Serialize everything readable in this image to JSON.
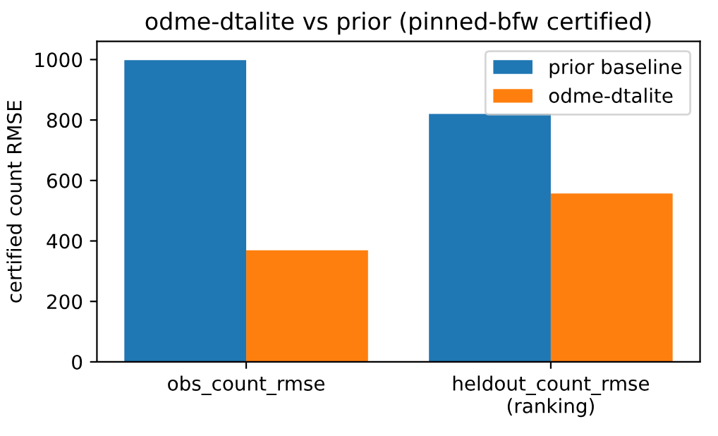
{
  "chart_data": {
    "type": "bar",
    "title": "odme-dtalite vs prior (pinned-bfw certified)",
    "ylabel": "certified count RMSE",
    "categories": [
      "obs_count_rmse",
      "heldout_count_rmse\n(ranking)"
    ],
    "series": [
      {
        "name": "prior baseline",
        "color": "#1f77b4",
        "values": [
          998,
          820
        ]
      },
      {
        "name": "odme-dtalite",
        "color": "#ff7f0e",
        "values": [
          369,
          557
        ]
      }
    ],
    "ylim": [
      0,
      1060
    ],
    "yticks": [
      0,
      200,
      400,
      600,
      800,
      1000
    ],
    "grid": false,
    "legend": "top right"
  }
}
